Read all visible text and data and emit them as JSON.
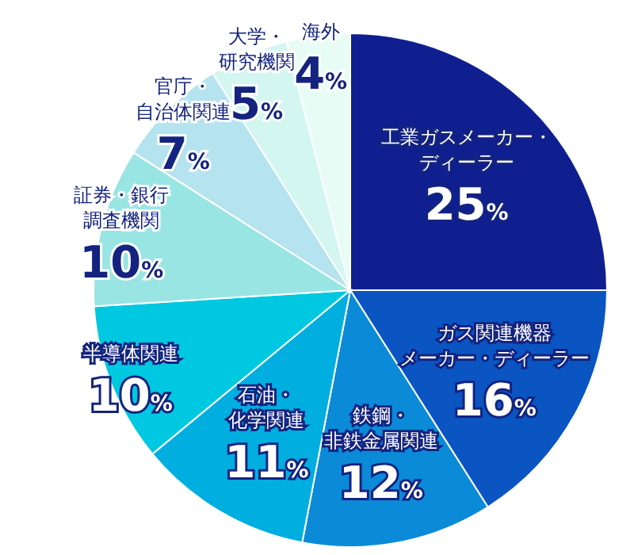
{
  "chart_data": {
    "type": "pie",
    "categories": [
      "工業ガスメーカー・ディーラー",
      "ガス関連機器メーカー・ディーラー",
      "鉄鋼・非鉄金属関連",
      "石油・化学関連",
      "半導体関連",
      "証券・銀行調査機関",
      "官庁・自治体関連",
      "大学・研究機関",
      "海外"
    ],
    "values": [
      25,
      16,
      12,
      11,
      10,
      10,
      7,
      5,
      4
    ],
    "value_labels": [
      "25%",
      "16%",
      "12%",
      "11%",
      "10%",
      "10%",
      "7%",
      "5%",
      "4%"
    ],
    "colors": [
      "#101f8f",
      "#0a55c2",
      "#0b8ad8",
      "#00aee0",
      "#00c8e0",
      "#99e5e3",
      "#b5e3ef",
      "#d3f6f1",
      "#e8fcf6"
    ]
  }
}
